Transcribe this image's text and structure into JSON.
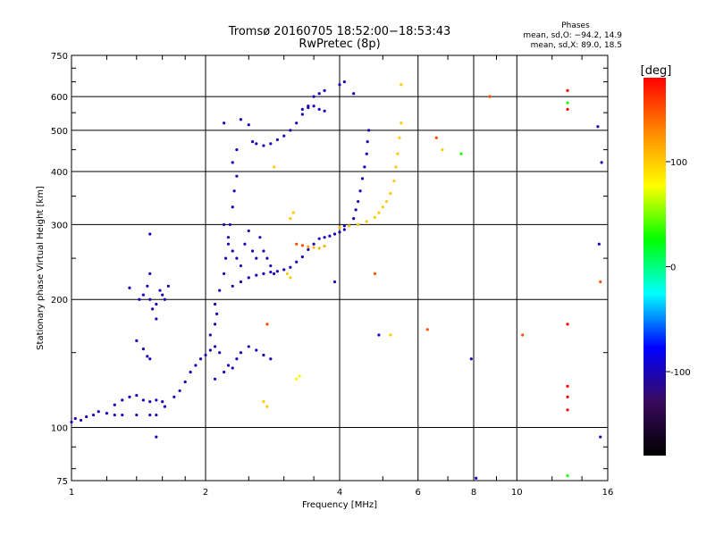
{
  "chart_data": {
    "type": "scatter",
    "title": "Tromsø 20160705 18:52:00−18:53:43",
    "subtitle": "RwPretec (8p)",
    "xlabel": "Frequency [MHz]",
    "ylabel": "Stationary phase Virtual Height [km]",
    "x_scale": "log",
    "y_scale": "log",
    "xlim": [
      1,
      16
    ],
    "ylim": [
      75,
      750
    ],
    "x_ticks": [
      1,
      2,
      4,
      6,
      8,
      10,
      16
    ],
    "y_ticks": [
      75,
      100,
      200,
      300,
      400,
      500,
      600,
      750
    ],
    "grid": true,
    "phase_stats": {
      "heading": "Phases",
      "line_o": "mean, sd,O: −94.2, 14.9",
      "line_x": "mean, sd,X:  89.0, 18.5"
    },
    "colorbar": {
      "label": "[deg]",
      "range": [
        -180,
        180
      ],
      "ticks": [
        100,
        0,
        -100
      ],
      "colormap": [
        "#000000",
        "#3a0a5e",
        "#0000ff",
        "#00ffff",
        "#00ff00",
        "#ffff00",
        "#ff8800",
        "#ff0000"
      ]
    },
    "series": [
      {
        "values": [
          {
            "x": 1.0,
            "y": 103,
            "c": -100
          },
          {
            "x": 1.02,
            "y": 105,
            "c": -100
          },
          {
            "x": 1.05,
            "y": 104,
            "c": -100
          },
          {
            "x": 1.08,
            "y": 106,
            "c": -100
          },
          {
            "x": 1.12,
            "y": 107,
            "c": -100
          },
          {
            "x": 1.15,
            "y": 109,
            "c": -100
          },
          {
            "x": 1.2,
            "y": 108,
            "c": -100
          },
          {
            "x": 1.25,
            "y": 107,
            "c": -100
          },
          {
            "x": 1.3,
            "y": 107,
            "c": -100
          },
          {
            "x": 1.4,
            "y": 107,
            "c": -100
          },
          {
            "x": 1.5,
            "y": 107,
            "c": -100
          },
          {
            "x": 1.55,
            "y": 107,
            "c": -100
          },
          {
            "x": 1.25,
            "y": 113,
            "c": -100
          },
          {
            "x": 1.3,
            "y": 116,
            "c": -100
          },
          {
            "x": 1.35,
            "y": 118,
            "c": -100
          },
          {
            "x": 1.4,
            "y": 119,
            "c": -100
          },
          {
            "x": 1.45,
            "y": 116,
            "c": -100
          },
          {
            "x": 1.5,
            "y": 115,
            "c": -100
          },
          {
            "x": 1.55,
            "y": 116,
            "c": -100
          },
          {
            "x": 1.6,
            "y": 115,
            "c": -100
          },
          {
            "x": 1.62,
            "y": 112,
            "c": -100
          },
          {
            "x": 1.7,
            "y": 118,
            "c": -100
          },
          {
            "x": 1.75,
            "y": 122,
            "c": -100
          },
          {
            "x": 1.8,
            "y": 128,
            "c": -100
          },
          {
            "x": 1.85,
            "y": 135,
            "c": -100
          },
          {
            "x": 1.9,
            "y": 140,
            "c": -100
          },
          {
            "x": 1.95,
            "y": 145,
            "c": -100
          },
          {
            "x": 2.0,
            "y": 148,
            "c": -100
          },
          {
            "x": 2.05,
            "y": 152,
            "c": -100
          },
          {
            "x": 2.1,
            "y": 155,
            "c": -100
          },
          {
            "x": 2.15,
            "y": 150,
            "c": -100
          },
          {
            "x": 1.4,
            "y": 160,
            "c": -100
          },
          {
            "x": 1.45,
            "y": 153,
            "c": -100
          },
          {
            "x": 1.48,
            "y": 147,
            "c": -100
          },
          {
            "x": 1.5,
            "y": 145,
            "c": -100
          },
          {
            "x": 1.42,
            "y": 200,
            "c": -100
          },
          {
            "x": 1.45,
            "y": 205,
            "c": -100
          },
          {
            "x": 1.48,
            "y": 215,
            "c": -100
          },
          {
            "x": 1.5,
            "y": 200,
            "c": -100
          },
          {
            "x": 1.52,
            "y": 190,
            "c": -100
          },
          {
            "x": 1.55,
            "y": 195,
            "c": -100
          },
          {
            "x": 1.58,
            "y": 210,
            "c": -100
          },
          {
            "x": 1.6,
            "y": 205,
            "c": -100
          },
          {
            "x": 1.62,
            "y": 200,
            "c": -100
          },
          {
            "x": 1.65,
            "y": 215,
            "c": -100
          },
          {
            "x": 1.5,
            "y": 230,
            "c": -100
          },
          {
            "x": 1.55,
            "y": 180,
            "c": -100
          },
          {
            "x": 1.5,
            "y": 285,
            "c": -100
          },
          {
            "x": 1.35,
            "y": 213,
            "c": -100
          },
          {
            "x": 2.1,
            "y": 130,
            "c": -100
          },
          {
            "x": 2.2,
            "y": 135,
            "c": -100
          },
          {
            "x": 2.25,
            "y": 140,
            "c": -100
          },
          {
            "x": 2.3,
            "y": 138,
            "c": -100
          },
          {
            "x": 2.35,
            "y": 145,
            "c": -100
          },
          {
            "x": 2.4,
            "y": 150,
            "c": -100
          },
          {
            "x": 2.5,
            "y": 155,
            "c": -100
          },
          {
            "x": 2.6,
            "y": 152,
            "c": -100
          },
          {
            "x": 2.7,
            "y": 148,
            "c": -100
          },
          {
            "x": 2.8,
            "y": 145,
            "c": -100
          },
          {
            "x": 2.05,
            "y": 165,
            "c": -100
          },
          {
            "x": 2.1,
            "y": 175,
            "c": -100
          },
          {
            "x": 2.12,
            "y": 185,
            "c": -100
          },
          {
            "x": 2.1,
            "y": 195,
            "c": -100
          },
          {
            "x": 2.15,
            "y": 210,
            "c": -100
          },
          {
            "x": 2.2,
            "y": 230,
            "c": -100
          },
          {
            "x": 2.22,
            "y": 250,
            "c": -100
          },
          {
            "x": 2.25,
            "y": 270,
            "c": -100
          },
          {
            "x": 2.27,
            "y": 300,
            "c": -100
          },
          {
            "x": 2.3,
            "y": 330,
            "c": -100
          },
          {
            "x": 2.32,
            "y": 360,
            "c": -100
          },
          {
            "x": 2.35,
            "y": 390,
            "c": -100
          },
          {
            "x": 2.3,
            "y": 420,
            "c": -100
          },
          {
            "x": 2.35,
            "y": 450,
            "c": -100
          },
          {
            "x": 2.2,
            "y": 300,
            "c": -100
          },
          {
            "x": 2.25,
            "y": 280,
            "c": -100
          },
          {
            "x": 2.3,
            "y": 260,
            "c": -100
          },
          {
            "x": 2.35,
            "y": 250,
            "c": -100
          },
          {
            "x": 2.4,
            "y": 240,
            "c": -100
          },
          {
            "x": 2.45,
            "y": 270,
            "c": -100
          },
          {
            "x": 2.5,
            "y": 290,
            "c": -100
          },
          {
            "x": 2.55,
            "y": 260,
            "c": -100
          },
          {
            "x": 2.6,
            "y": 250,
            "c": -100
          },
          {
            "x": 2.65,
            "y": 280,
            "c": -100
          },
          {
            "x": 2.7,
            "y": 260,
            "c": -100
          },
          {
            "x": 2.75,
            "y": 250,
            "c": -100
          },
          {
            "x": 2.8,
            "y": 240,
            "c": -100
          },
          {
            "x": 2.85,
            "y": 230,
            "c": -100
          },
          {
            "x": 2.3,
            "y": 215,
            "c": -100
          },
          {
            "x": 2.4,
            "y": 220,
            "c": -100
          },
          {
            "x": 2.5,
            "y": 225,
            "c": -100
          },
          {
            "x": 2.6,
            "y": 228,
            "c": -100
          },
          {
            "x": 2.7,
            "y": 230,
            "c": -100
          },
          {
            "x": 2.8,
            "y": 232,
            "c": -100
          },
          {
            "x": 2.9,
            "y": 233,
            "c": -100
          },
          {
            "x": 3.0,
            "y": 235,
            "c": -100
          },
          {
            "x": 3.1,
            "y": 238,
            "c": -100
          },
          {
            "x": 3.2,
            "y": 245,
            "c": -100
          },
          {
            "x": 3.3,
            "y": 252,
            "c": -100
          },
          {
            "x": 3.4,
            "y": 262,
            "c": -100
          },
          {
            "x": 3.5,
            "y": 270,
            "c": -100
          },
          {
            "x": 3.6,
            "y": 278,
            "c": -100
          },
          {
            "x": 3.7,
            "y": 280,
            "c": -100
          },
          {
            "x": 3.8,
            "y": 282,
            "c": -100
          },
          {
            "x": 3.9,
            "y": 285,
            "c": -100
          },
          {
            "x": 4.0,
            "y": 288,
            "c": -100
          },
          {
            "x": 4.1,
            "y": 292,
            "c": -100
          },
          {
            "x": 4.2,
            "y": 298,
            "c": -100
          },
          {
            "x": 4.3,
            "y": 310,
            "c": -100
          },
          {
            "x": 4.35,
            "y": 325,
            "c": -100
          },
          {
            "x": 4.4,
            "y": 340,
            "c": -100
          },
          {
            "x": 4.45,
            "y": 360,
            "c": -100
          },
          {
            "x": 4.5,
            "y": 385,
            "c": -100
          },
          {
            "x": 4.55,
            "y": 410,
            "c": -100
          },
          {
            "x": 4.6,
            "y": 440,
            "c": -100
          },
          {
            "x": 4.62,
            "y": 470,
            "c": -100
          },
          {
            "x": 4.65,
            "y": 500,
            "c": -100
          },
          {
            "x": 2.4,
            "y": 530,
            "c": -100
          },
          {
            "x": 2.5,
            "y": 515,
            "c": -100
          },
          {
            "x": 2.55,
            "y": 470,
            "c": -100
          },
          {
            "x": 2.6,
            "y": 465,
            "c": -100
          },
          {
            "x": 2.7,
            "y": 460,
            "c": -100
          },
          {
            "x": 2.8,
            "y": 465,
            "c": -100
          },
          {
            "x": 2.9,
            "y": 475,
            "c": -100
          },
          {
            "x": 3.0,
            "y": 485,
            "c": -100
          },
          {
            "x": 3.1,
            "y": 500,
            "c": -100
          },
          {
            "x": 3.2,
            "y": 520,
            "c": -100
          },
          {
            "x": 3.3,
            "y": 545,
            "c": -100
          },
          {
            "x": 3.4,
            "y": 570,
            "c": -100
          },
          {
            "x": 3.5,
            "y": 600,
            "c": -100
          },
          {
            "x": 3.6,
            "y": 610,
            "c": -100
          },
          {
            "x": 3.7,
            "y": 620,
            "c": -100
          },
          {
            "x": 3.3,
            "y": 560,
            "c": -100
          },
          {
            "x": 3.4,
            "y": 565,
            "c": -100
          },
          {
            "x": 3.5,
            "y": 570,
            "c": -100
          },
          {
            "x": 3.6,
            "y": 560,
            "c": -100
          },
          {
            "x": 3.7,
            "y": 555,
            "c": -100
          },
          {
            "x": 2.2,
            "y": 520,
            "c": -100
          },
          {
            "x": 4.0,
            "y": 640,
            "c": -100
          },
          {
            "x": 4.1,
            "y": 650,
            "c": -100
          },
          {
            "x": 4.3,
            "y": 610,
            "c": -100
          },
          {
            "x": 3.2,
            "y": 270,
            "c": 150
          },
          {
            "x": 3.3,
            "y": 268,
            "c": 150
          },
          {
            "x": 3.4,
            "y": 266,
            "c": 120
          },
          {
            "x": 3.5,
            "y": 265,
            "c": 110
          },
          {
            "x": 3.6,
            "y": 264,
            "c": 110
          },
          {
            "x": 3.7,
            "y": 267,
            "c": 110
          },
          {
            "x": 4.0,
            "y": 295,
            "c": 110
          },
          {
            "x": 4.2,
            "y": 298,
            "c": 100
          },
          {
            "x": 4.4,
            "y": 300,
            "c": 100
          },
          {
            "x": 4.6,
            "y": 305,
            "c": 100
          },
          {
            "x": 4.8,
            "y": 312,
            "c": 100
          },
          {
            "x": 4.9,
            "y": 320,
            "c": 100
          },
          {
            "x": 5.0,
            "y": 330,
            "c": 100
          },
          {
            "x": 5.1,
            "y": 340,
            "c": 100
          },
          {
            "x": 5.2,
            "y": 355,
            "c": 100
          },
          {
            "x": 5.3,
            "y": 380,
            "c": 100
          },
          {
            "x": 5.35,
            "y": 410,
            "c": 100
          },
          {
            "x": 5.4,
            "y": 440,
            "c": 100
          },
          {
            "x": 5.45,
            "y": 480,
            "c": 100
          },
          {
            "x": 5.5,
            "y": 520,
            "c": 100
          },
          {
            "x": 3.1,
            "y": 310,
            "c": 100
          },
          {
            "x": 3.15,
            "y": 320,
            "c": 100
          },
          {
            "x": 3.05,
            "y": 230,
            "c": 100
          },
          {
            "x": 3.1,
            "y": 225,
            "c": 100
          },
          {
            "x": 2.7,
            "y": 115,
            "c": 100
          },
          {
            "x": 2.75,
            "y": 112,
            "c": 100
          },
          {
            "x": 3.2,
            "y": 130,
            "c": 80
          },
          {
            "x": 3.25,
            "y": 132,
            "c": 80
          },
          {
            "x": 2.85,
            "y": 410,
            "c": 100
          },
          {
            "x": 5.2,
            "y": 165,
            "c": 100
          },
          {
            "x": 5.5,
            "y": 640,
            "c": 100
          },
          {
            "x": 6.6,
            "y": 480,
            "c": 150
          },
          {
            "x": 6.8,
            "y": 450,
            "c": 100
          },
          {
            "x": 7.5,
            "y": 440,
            "c": 30
          },
          {
            "x": 8.7,
            "y": 600,
            "c": 150
          },
          {
            "x": 10.3,
            "y": 165,
            "c": 150
          },
          {
            "x": 13.0,
            "y": 620,
            "c": 180
          },
          {
            "x": 13.0,
            "y": 580,
            "c": 30
          },
          {
            "x": 13.0,
            "y": 560,
            "c": 180
          },
          {
            "x": 13.0,
            "y": 175,
            "c": 180
          },
          {
            "x": 13.0,
            "y": 125,
            "c": 180
          },
          {
            "x": 13.0,
            "y": 118,
            "c": 180
          },
          {
            "x": 13.0,
            "y": 110,
            "c": 180
          },
          {
            "x": 15.2,
            "y": 510,
            "c": -100
          },
          {
            "x": 15.5,
            "y": 420,
            "c": -100
          },
          {
            "x": 15.3,
            "y": 270,
            "c": -100
          },
          {
            "x": 15.4,
            "y": 220,
            "c": 150
          },
          {
            "x": 15.4,
            "y": 95,
            "c": -100
          },
          {
            "x": 13.0,
            "y": 77,
            "c": 30
          },
          {
            "x": 8.1,
            "y": 76,
            "c": -100
          },
          {
            "x": 1.55,
            "y": 95,
            "c": -100
          },
          {
            "x": 2.75,
            "y": 175,
            "c": 150
          },
          {
            "x": 4.9,
            "y": 165,
            "c": -100
          },
          {
            "x": 4.8,
            "y": 230,
            "c": 150
          },
          {
            "x": 3.9,
            "y": 220,
            "c": -100
          },
          {
            "x": 4.1,
            "y": 298,
            "c": -100
          },
          {
            "x": 7.9,
            "y": 145,
            "c": -100
          },
          {
            "x": 6.3,
            "y": 170,
            "c": 150
          }
        ]
      }
    ]
  }
}
